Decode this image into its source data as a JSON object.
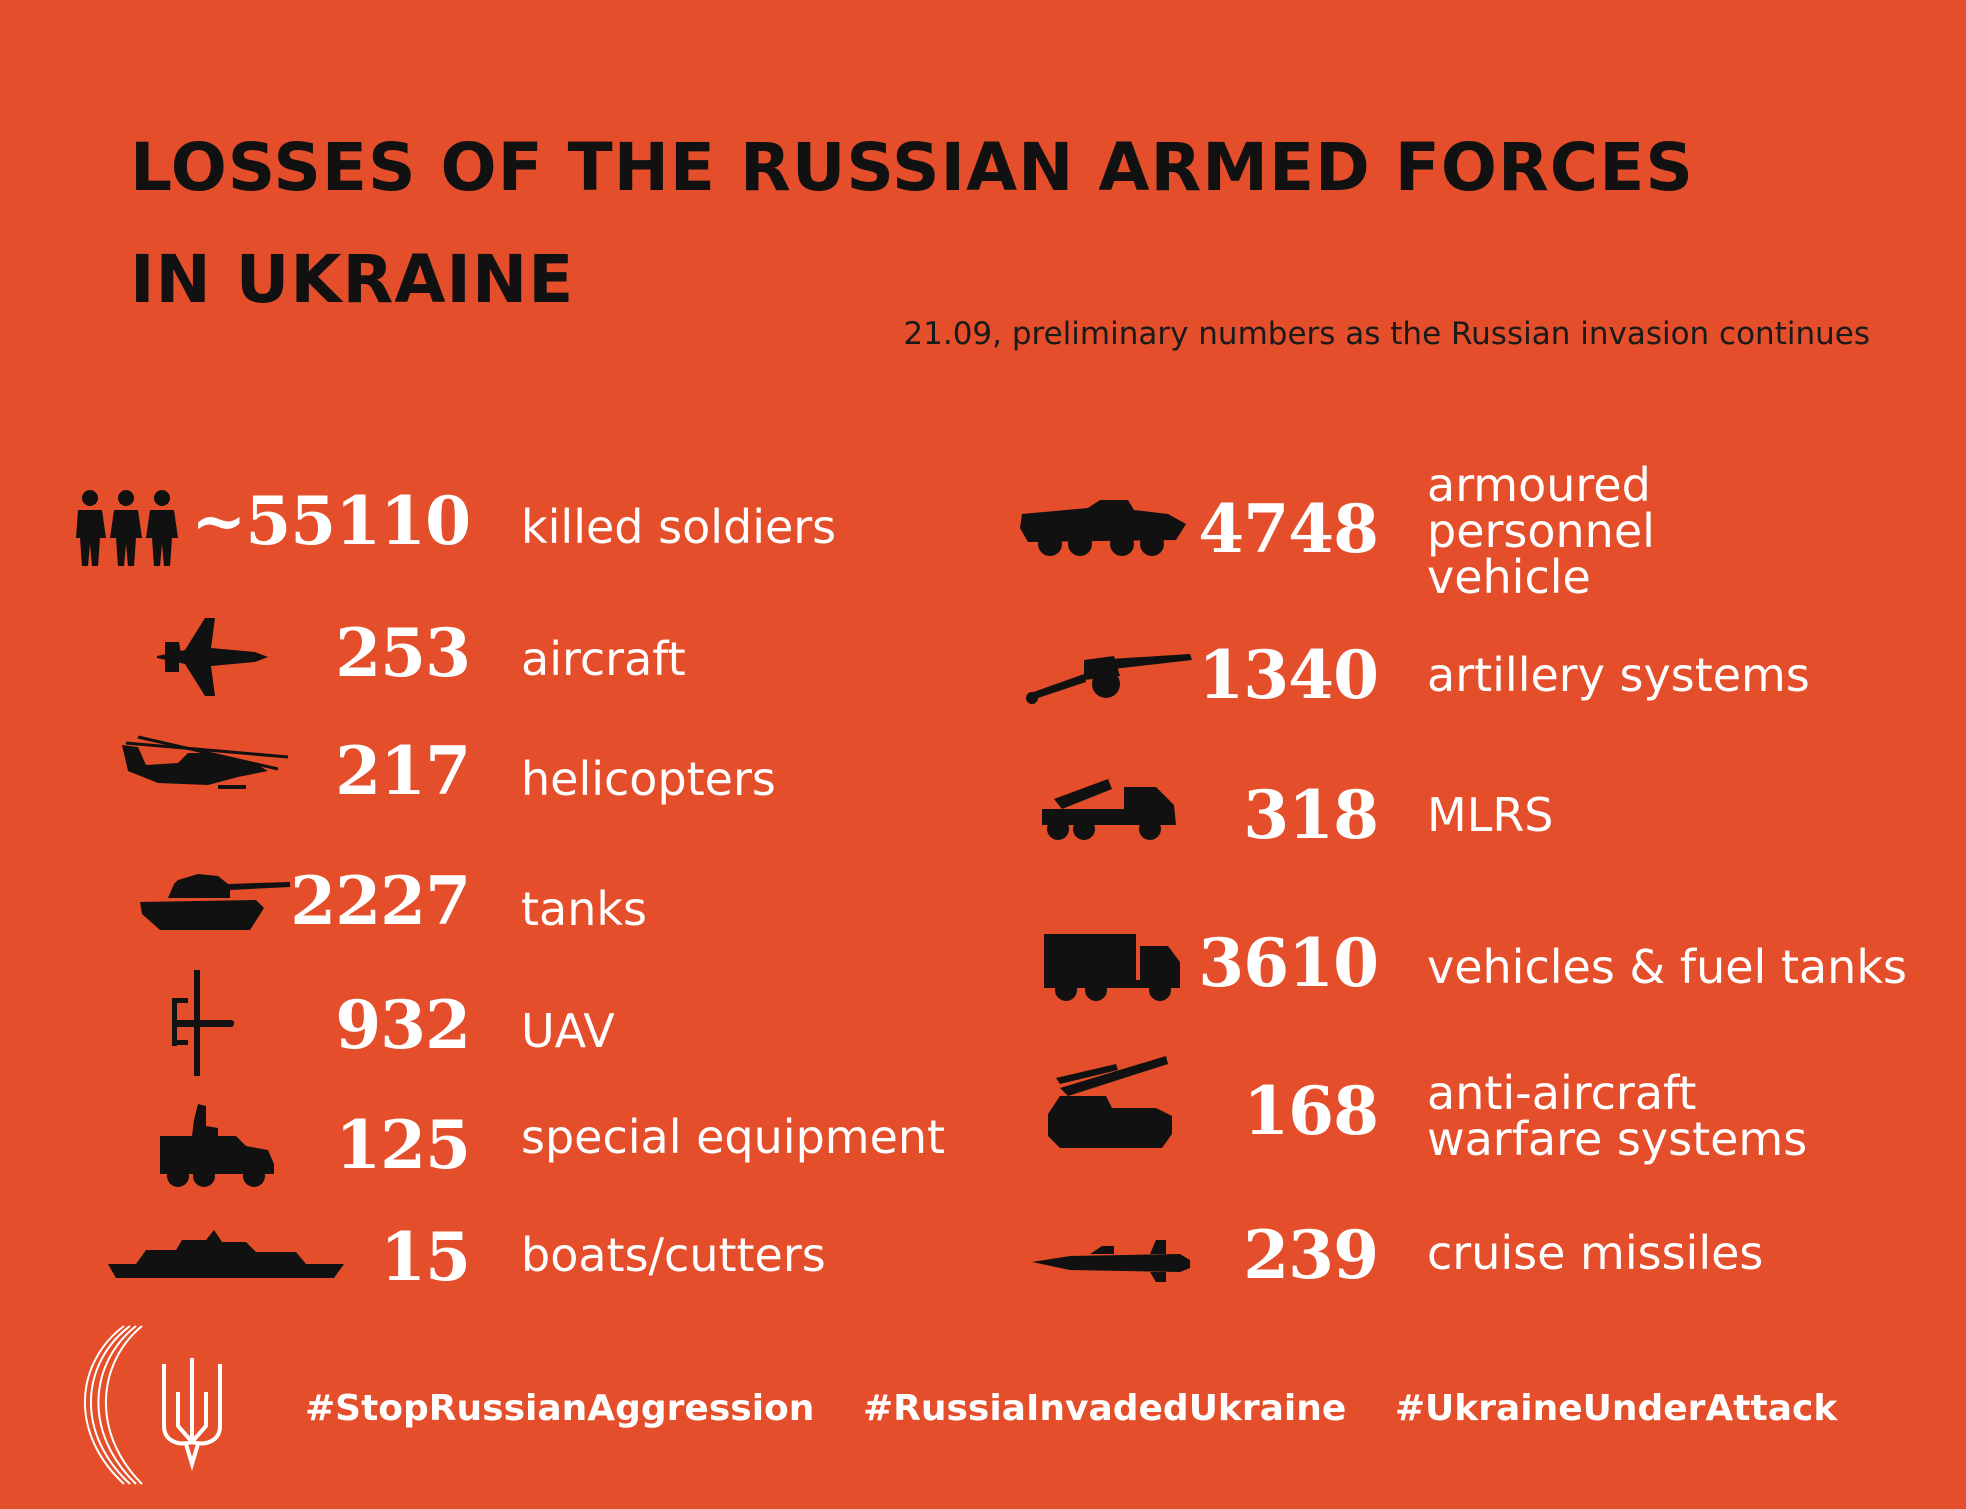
{
  "header": {
    "title_line1": "LOSSES OF THE RUSSIAN ARMED FORCES",
    "title_line2": "IN UKRAINE",
    "subtitle": "21.09, preliminary numbers as the Russian invasion continues"
  },
  "left": [
    {
      "icon": "soldiers-icon",
      "value": "~55110",
      "label": "killed soldiers"
    },
    {
      "icon": "aircraft-icon",
      "value": "253",
      "label": "aircraft"
    },
    {
      "icon": "helicopter-icon",
      "value": "217",
      "label": "helicopters"
    },
    {
      "icon": "tank-icon",
      "value": "2227",
      "label": "tanks"
    },
    {
      "icon": "uav-icon",
      "value": "932",
      "label": "UAV"
    },
    {
      "icon": "special-equipment-icon",
      "value": "125",
      "label": "special equipment"
    },
    {
      "icon": "boat-icon",
      "value": "15",
      "label": "boats/cutters"
    }
  ],
  "right": [
    {
      "icon": "apc-icon",
      "value": "4748",
      "label": "armoured\npersonnel\nvehicle"
    },
    {
      "icon": "artillery-icon",
      "value": "1340",
      "label": "artillery systems"
    },
    {
      "icon": "mlrs-icon",
      "value": "318",
      "label": "MLRS"
    },
    {
      "icon": "truck-icon",
      "value": "3610",
      "label": "vehicles & fuel tanks"
    },
    {
      "icon": "anti-aircraft-icon",
      "value": "168",
      "label": "anti-aircraft\nwarfare systems"
    },
    {
      "icon": "cruise-missile-icon",
      "value": "239",
      "label": "cruise missiles"
    }
  ],
  "footer": {
    "tags": [
      "#StopRussianAggression",
      "#RussiaInvadedUkraine",
      "#UkraineUnderAttack"
    ],
    "logo_icon": "trident-icon"
  },
  "colors": {
    "background": "#E44E2A",
    "text": "#FFFFFF",
    "title": "#111111"
  }
}
